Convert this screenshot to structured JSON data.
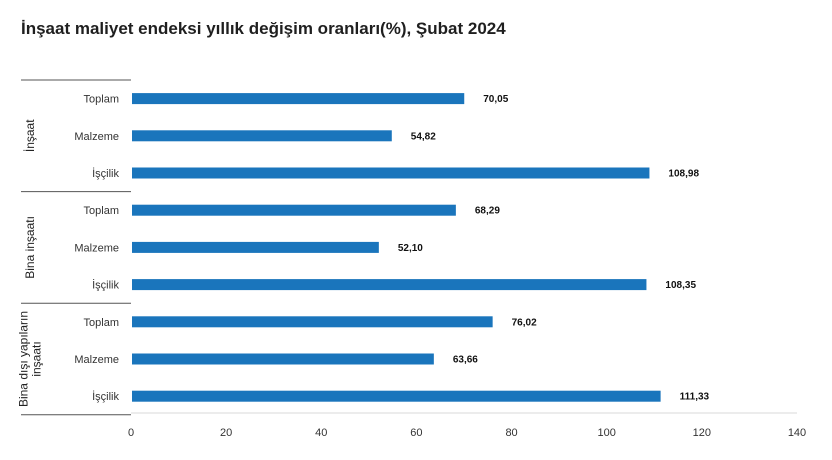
{
  "title": "İnşaat maliyet endeksi yıllık değişim oranları(%), Şubat 2024",
  "chart_data": {
    "type": "bar",
    "orientation": "horizontal",
    "title": "İnşaat maliyet endeksi yıllık değişim oranları(%), Şubat 2024",
    "xlim": [
      0,
      140
    ],
    "xticks": [
      0,
      20,
      40,
      60,
      80,
      100,
      120,
      140
    ],
    "bar_color": "#1a75bc",
    "groups": [
      {
        "label": "İnşaat",
        "categories": [
          "Toplam",
          "Malzeme",
          "İşçilik"
        ],
        "values": [
          70.05,
          54.82,
          108.98
        ],
        "value_labels": [
          "70,05",
          "54,82",
          "108,98"
        ]
      },
      {
        "label": "Bina inşaatı",
        "categories": [
          "Toplam",
          "Malzeme",
          "İşçilik"
        ],
        "values": [
          68.29,
          52.1,
          108.35
        ],
        "value_labels": [
          "68,29",
          "52,10",
          "108,35"
        ]
      },
      {
        "label": [
          "Bina dışı yapıların",
          "inşaatı"
        ],
        "categories": [
          "Toplam",
          "Malzeme",
          "İşçilik"
        ],
        "values": [
          76.02,
          63.66,
          111.33
        ],
        "value_labels": [
          "76,02",
          "63,66",
          "111,33"
        ]
      }
    ]
  }
}
